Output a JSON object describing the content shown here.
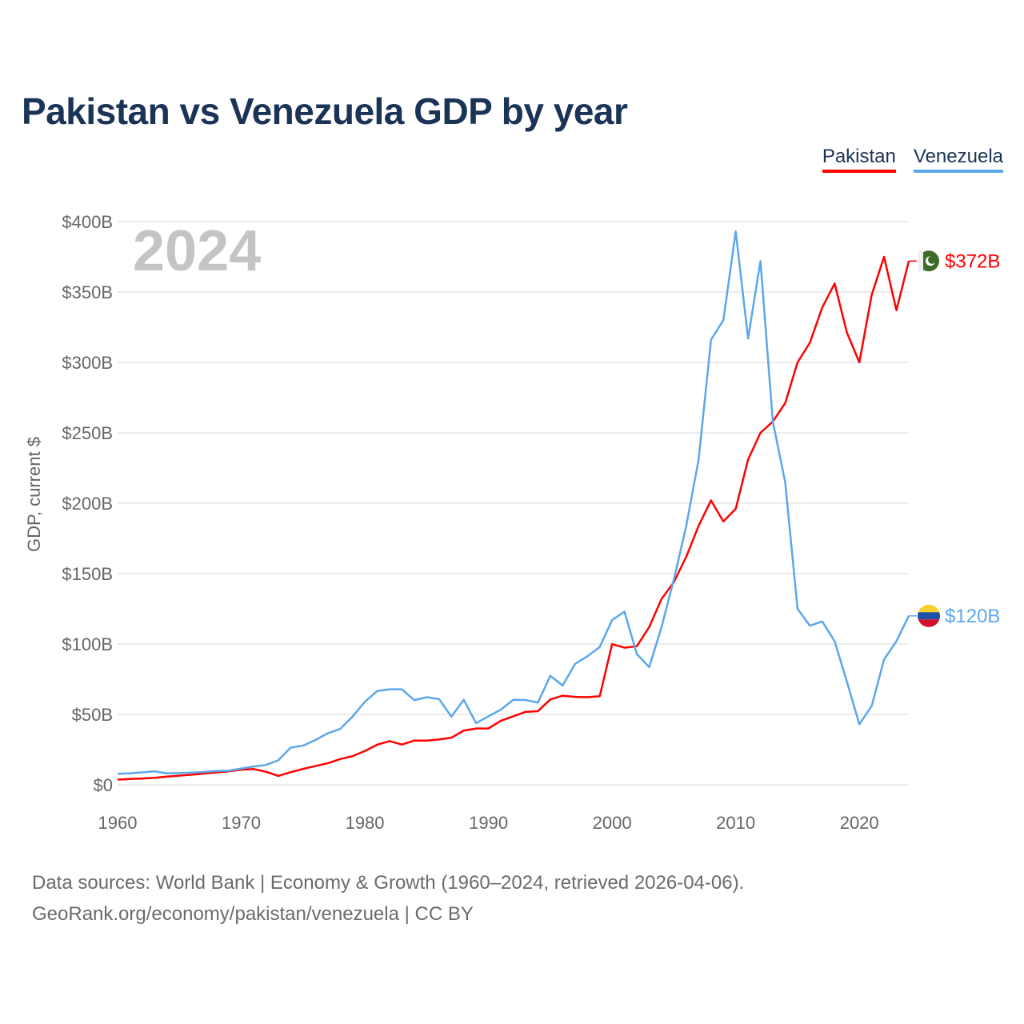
{
  "title": "Pakistan vs Venezuela GDP by year",
  "chart_data": {
    "type": "line",
    "title": "Pakistan vs Venezuela GDP by year",
    "xlabel": "",
    "ylabel": "GDP, current $",
    "year_label": "2024",
    "xlim": [
      1960,
      2024
    ],
    "ylim": [
      0,
      400
    ],
    "x_ticks": [
      "1960",
      "1970",
      "1980",
      "1990",
      "2000",
      "2010",
      "2020"
    ],
    "y_ticks": [
      {
        "v": 0,
        "label": "$0"
      },
      {
        "v": 50,
        "label": "$50B"
      },
      {
        "v": 100,
        "label": "$100B"
      },
      {
        "v": 150,
        "label": "$150B"
      },
      {
        "v": 200,
        "label": "$200B"
      },
      {
        "v": 250,
        "label": "$250B"
      },
      {
        "v": 300,
        "label": "$300B"
      },
      {
        "v": 350,
        "label": "$350B"
      },
      {
        "v": 400,
        "label": "$400B"
      }
    ],
    "grid": true,
    "legend_position": "top-right",
    "x_start": 1960,
    "series": [
      {
        "name": "Pakistan",
        "color": "#ff0000",
        "end_label": "$372B",
        "flag": "pakistan-flag",
        "values": [
          3.7,
          4.1,
          4.5,
          5,
          5.8,
          6.5,
          7.2,
          8,
          8.8,
          9.6,
          10.7,
          11.2,
          9.3,
          6.3,
          9,
          11.3,
          13.3,
          15.3,
          18.3,
          20.3,
          24,
          28.5,
          31,
          28.6,
          31.4,
          31.4,
          32.2,
          33.5,
          38.5,
          40,
          40,
          45.5,
          48.6,
          51.8,
          52.3,
          60.6,
          63.3,
          62.4,
          62.2,
          62.9,
          99.9,
          97.4,
          98.4,
          112,
          132,
          144,
          162,
          184,
          202,
          187,
          196,
          231,
          250,
          258,
          271,
          300,
          314,
          339,
          356,
          321,
          300,
          348,
          375,
          337,
          372
        ]
      },
      {
        "name": "Venezuela",
        "color": "#5ba7ec",
        "end_label": "$120B",
        "flag": "venezuela-flag",
        "values": [
          7.8,
          8.2,
          8.8,
          9.6,
          8.1,
          8.3,
          8.7,
          9.1,
          9.9,
          10,
          11.6,
          13,
          14.1,
          17.4,
          26.4,
          27.8,
          31.8,
          36.6,
          39.6,
          48.4,
          59,
          66.6,
          67.8,
          67.8,
          60.1,
          62.2,
          60.9,
          48.4,
          60.4,
          43.8,
          48.6,
          53.4,
          60.4,
          60.2,
          58.4,
          77.4,
          70.5,
          85.8,
          91.3,
          97.9,
          117,
          123,
          92.9,
          83.6,
          112,
          146,
          184,
          231,
          316,
          330,
          393,
          317,
          372,
          258,
          215,
          125,
          113,
          116,
          102,
          73,
          43,
          56,
          89,
          102,
          120
        ]
      }
    ]
  },
  "footer": {
    "line1": "Data sources: World Bank | Economy & Growth (1960–2024, retrieved 2026-04-06).",
    "line2": "GeoRank.org/economy/pakistan/venezuela | CC BY"
  }
}
